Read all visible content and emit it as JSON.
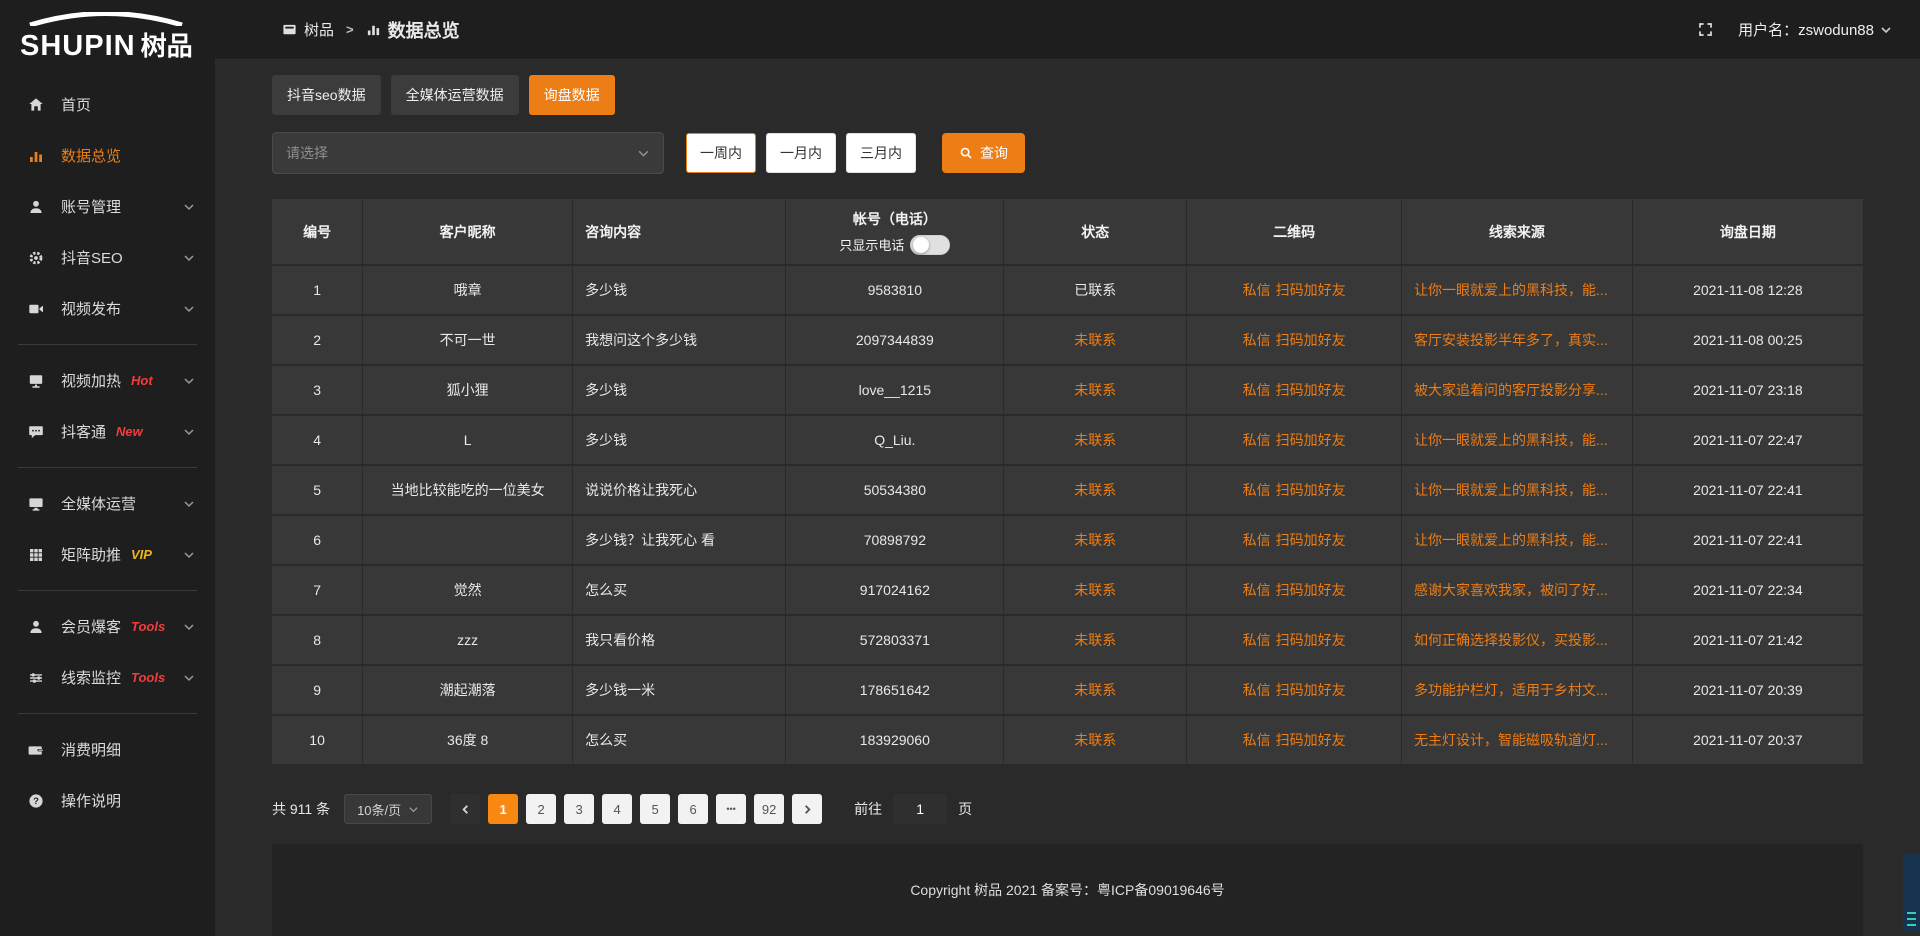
{
  "colors": {
    "accent": "#ed7d15",
    "badge_red": "#f23c3c",
    "badge_gold": "#efb41f",
    "page_active": "#f78912"
  },
  "logo": {
    "brand_en": "SHUPIN",
    "brand_cn": "树品"
  },
  "topbar": {
    "breadcrumb": [
      {
        "icon": "app",
        "label": "树品"
      },
      {
        "icon": "bar-chart",
        "label": "数据总览"
      }
    ],
    "separator": ">",
    "username_label": "用户名：zswodun88"
  },
  "sidebar": {
    "items": [
      {
        "id": "home",
        "icon": "home",
        "label": "首页"
      },
      {
        "id": "data-overview",
        "icon": "bar-chart",
        "label": "数据总览",
        "active": true
      },
      {
        "id": "account-management",
        "icon": "user",
        "label": "账号管理",
        "chevron": true
      },
      {
        "id": "douyin-seo",
        "icon": "gear",
        "label": "抖音SEO",
        "chevron": true
      },
      {
        "id": "video-publish",
        "icon": "video",
        "label": "视频发布",
        "chevron": true
      },
      {
        "type": "divider"
      },
      {
        "id": "video-heat",
        "icon": "screen",
        "label": "视频加热",
        "badge": "Hot",
        "badge_style": "badge-red",
        "chevron": true
      },
      {
        "id": "douketong",
        "icon": "chat",
        "label": "抖客通",
        "badge": "New",
        "badge_style": "badge-red",
        "chevron": true
      },
      {
        "type": "divider"
      },
      {
        "id": "media-operation",
        "icon": "monitor",
        "label": "全媒体运营",
        "chevron": true
      },
      {
        "id": "matrix-boost",
        "icon": "grid",
        "label": "矩阵助推",
        "badge": "VIP",
        "badge_style": "badge-gold",
        "chevron": true
      },
      {
        "type": "divider"
      },
      {
        "id": "member-baoke",
        "icon": "user",
        "label": "会员爆客",
        "badge": "Tools",
        "badge_style": "badge-red",
        "chevron": true
      },
      {
        "id": "clue-monitor",
        "icon": "sliders",
        "label": "线索监控",
        "badge": "Tools",
        "badge_style": "badge-red",
        "chevron": true
      },
      {
        "type": "divider"
      },
      {
        "id": "consumption-detail",
        "icon": "wallet",
        "label": "消费明细"
      },
      {
        "id": "operation-guide",
        "icon": "question",
        "label": "操作说明"
      }
    ]
  },
  "tabs": [
    {
      "label": "抖音seo数据",
      "active": false
    },
    {
      "label": "全媒体运营数据",
      "active": false
    },
    {
      "label": "询盘数据",
      "active": true
    }
  ],
  "filters": {
    "select_placeholder": "请选择",
    "time_buttons": [
      {
        "label": "一周内",
        "active": true
      },
      {
        "label": "一月内",
        "active": false
      },
      {
        "label": "三月内",
        "active": false
      }
    ],
    "search_label": "查询"
  },
  "table": {
    "columns": [
      {
        "label": "编号"
      },
      {
        "label": "客户昵称"
      },
      {
        "label": "咨询内容"
      },
      {
        "label": "帐号（电话）",
        "sub_label": "只显示电话",
        "toggle_on": false
      },
      {
        "label": "状态"
      },
      {
        "label": "二维码"
      },
      {
        "label": "线索来源"
      },
      {
        "label": "询盘日期"
      }
    ],
    "rows": [
      {
        "no": "1",
        "nickname": "哦章",
        "content": "多少钱",
        "account": "9583810",
        "status": "已联系",
        "contacted": true,
        "qr": [
          "私信",
          "扫码加好友"
        ],
        "source": "让你一眼就爱上的黑科技，能...",
        "date": "2021-11-08 12:28"
      },
      {
        "no": "2",
        "nickname": "不可一世",
        "content": "我想问这个多少钱",
        "account": "2097344839",
        "status": "未联系",
        "contacted": false,
        "qr": [
          "私信",
          "扫码加好友"
        ],
        "source": "客厅安装投影半年多了，真实...",
        "date": "2021-11-08 00:25"
      },
      {
        "no": "3",
        "nickname": "狐小狸",
        "content": "多少钱",
        "account": "love__1215",
        "status": "未联系",
        "contacted": false,
        "qr": [
          "私信",
          "扫码加好友"
        ],
        "source": "被大家追着问的客厅投影分享...",
        "date": "2021-11-07 23:18"
      },
      {
        "no": "4",
        "nickname": "L",
        "content": "多少钱",
        "account": "Q_Liu.",
        "status": "未联系",
        "contacted": false,
        "qr": [
          "私信",
          "扫码加好友"
        ],
        "source": "让你一眼就爱上的黑科技，能...",
        "date": "2021-11-07 22:47"
      },
      {
        "no": "5",
        "nickname": "当地比较能吃的一位美女",
        "content": "说说价格让我死心",
        "account": "50534380",
        "status": "未联系",
        "contacted": false,
        "qr": [
          "私信",
          "扫码加好友"
        ],
        "source": "让你一眼就爱上的黑科技，能...",
        "date": "2021-11-07 22:41"
      },
      {
        "no": "6",
        "nickname": "",
        "content": "多少钱？让我死心 看",
        "account": "70898792",
        "status": "未联系",
        "contacted": false,
        "qr": [
          "私信",
          "扫码加好友"
        ],
        "source": "让你一眼就爱上的黑科技，能...",
        "date": "2021-11-07 22:41"
      },
      {
        "no": "7",
        "nickname": "觉然",
        "content": "怎么买",
        "account": "917024162",
        "status": "未联系",
        "contacted": false,
        "qr": [
          "私信",
          "扫码加好友"
        ],
        "source": "感谢大家喜欢我家，被问了好...",
        "date": "2021-11-07 22:34"
      },
      {
        "no": "8",
        "nickname": "zzz",
        "content": "我只看价格",
        "account": "572803371",
        "status": "未联系",
        "contacted": false,
        "qr": [
          "私信",
          "扫码加好友"
        ],
        "source": "如何正确选择投影仪，买投影...",
        "date": "2021-11-07 21:42"
      },
      {
        "no": "9",
        "nickname": "潮起潮落",
        "content": "多少钱一米",
        "account": "178651642",
        "status": "未联系",
        "contacted": false,
        "qr": [
          "私信",
          "扫码加好友"
        ],
        "source": "多功能护栏灯，适用于乡村文...",
        "date": "2021-11-07 20:39"
      },
      {
        "no": "10",
        "nickname": "36度 8",
        "content": "怎么买",
        "account": "183929060",
        "status": "未联系",
        "contacted": false,
        "qr": [
          "私信",
          "扫码加好友"
        ],
        "source": "无主灯设计，智能磁吸轨道灯...",
        "date": "2021-11-07 20:37"
      }
    ]
  },
  "pagination": {
    "total_label": "共 911 条",
    "per_page": "10条/页",
    "pages": [
      "1",
      "2",
      "3",
      "4",
      "5",
      "6",
      "•••",
      "92"
    ],
    "active_page": "1",
    "goto_prefix": "前往",
    "goto_value": "1",
    "goto_suffix": "页"
  },
  "footer": {
    "copyright": "Copyright 树品 2021 备案号：粤ICP备09019646号"
  }
}
